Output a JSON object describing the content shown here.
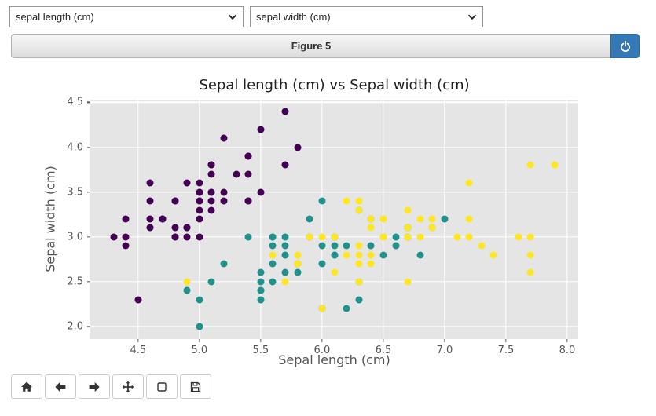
{
  "controls": {
    "x_select": {
      "value": "sepal length (cm)"
    },
    "y_select": {
      "value": "sepal width (cm)"
    }
  },
  "figure_header": {
    "label": "Figure 5",
    "power_icon": "power-icon"
  },
  "colors": {
    "header_blue": "#3478b5",
    "plot_background": "#e5e5e5",
    "grid": "#ffffff",
    "series_purple": "#440154",
    "series_teal": "#21918c",
    "series_yellow": "#fde725"
  },
  "toolbar": {
    "icons": [
      "home-icon",
      "arrow-left-icon",
      "arrow-right-icon",
      "move-icon",
      "square-icon",
      "save-icon"
    ]
  },
  "chart_data": {
    "type": "scatter",
    "title": "Sepal length (cm) vs Sepal width (cm)",
    "xlabel": "Sepal length (cm)",
    "ylabel": "Sepal width (cm)",
    "xlim": [
      4.11,
      8.09
    ],
    "ylim": [
      1.86,
      4.53
    ],
    "xticks": [
      4.5,
      5.0,
      5.5,
      6.0,
      6.5,
      7.0,
      7.5,
      8.0
    ],
    "yticks": [
      2.0,
      2.5,
      3.0,
      3.5,
      4.0,
      4.5
    ],
    "grid": true,
    "legend": "none",
    "series": [
      {
        "name": "purple-group",
        "color": "#440154",
        "points": [
          [
            5.1,
            3.5
          ],
          [
            4.9,
            3.0
          ],
          [
            4.7,
            3.2
          ],
          [
            4.6,
            3.1
          ],
          [
            5.0,
            3.6
          ],
          [
            5.4,
            3.9
          ],
          [
            4.6,
            3.4
          ],
          [
            5.0,
            3.4
          ],
          [
            4.4,
            2.9
          ],
          [
            4.9,
            3.1
          ],
          [
            5.4,
            3.7
          ],
          [
            4.8,
            3.4
          ],
          [
            4.8,
            3.0
          ],
          [
            4.3,
            3.0
          ],
          [
            5.8,
            4.0
          ],
          [
            5.7,
            4.4
          ],
          [
            5.4,
            3.9
          ],
          [
            5.1,
            3.5
          ],
          [
            5.7,
            3.8
          ],
          [
            5.1,
            3.8
          ],
          [
            5.4,
            3.4
          ],
          [
            5.1,
            3.7
          ],
          [
            4.6,
            3.6
          ],
          [
            5.1,
            3.3
          ],
          [
            4.8,
            3.4
          ],
          [
            5.0,
            3.0
          ],
          [
            5.0,
            3.4
          ],
          [
            5.2,
            3.5
          ],
          [
            5.2,
            3.4
          ],
          [
            4.7,
            3.2
          ],
          [
            4.8,
            3.1
          ],
          [
            5.4,
            3.4
          ],
          [
            5.2,
            4.1
          ],
          [
            5.5,
            4.2
          ],
          [
            4.9,
            3.1
          ],
          [
            5.0,
            3.2
          ],
          [
            5.5,
            3.5
          ],
          [
            4.9,
            3.6
          ],
          [
            4.4,
            3.0
          ],
          [
            5.1,
            3.4
          ],
          [
            5.0,
            3.5
          ],
          [
            4.5,
            2.3
          ],
          [
            4.4,
            3.2
          ],
          [
            5.0,
            3.5
          ],
          [
            5.1,
            3.8
          ],
          [
            4.8,
            3.0
          ],
          [
            5.1,
            3.8
          ],
          [
            4.6,
            3.2
          ],
          [
            5.3,
            3.7
          ],
          [
            5.0,
            3.3
          ]
        ]
      },
      {
        "name": "teal-group",
        "color": "#21918c",
        "points": [
          [
            7.0,
            3.2
          ],
          [
            6.4,
            3.2
          ],
          [
            6.9,
            3.1
          ],
          [
            5.5,
            2.3
          ],
          [
            6.5,
            2.8
          ],
          [
            5.7,
            2.8
          ],
          [
            6.3,
            3.3
          ],
          [
            4.9,
            2.4
          ],
          [
            6.6,
            2.9
          ],
          [
            5.2,
            2.7
          ],
          [
            5.0,
            2.0
          ],
          [
            5.9,
            3.0
          ],
          [
            6.0,
            2.2
          ],
          [
            6.1,
            2.9
          ],
          [
            5.6,
            2.9
          ],
          [
            6.7,
            3.1
          ],
          [
            5.6,
            3.0
          ],
          [
            5.8,
            2.7
          ],
          [
            6.2,
            2.2
          ],
          [
            5.6,
            2.5
          ],
          [
            5.9,
            3.2
          ],
          [
            6.1,
            2.8
          ],
          [
            6.3,
            2.5
          ],
          [
            6.1,
            2.8
          ],
          [
            6.4,
            2.9
          ],
          [
            6.6,
            3.0
          ],
          [
            6.8,
            2.8
          ],
          [
            6.7,
            3.0
          ],
          [
            6.0,
            2.9
          ],
          [
            5.7,
            2.6
          ],
          [
            5.5,
            2.4
          ],
          [
            5.5,
            2.4
          ],
          [
            5.8,
            2.7
          ],
          [
            6.0,
            2.7
          ],
          [
            5.4,
            3.0
          ],
          [
            6.0,
            3.4
          ],
          [
            6.7,
            3.1
          ],
          [
            6.3,
            2.3
          ],
          [
            5.6,
            3.0
          ],
          [
            5.5,
            2.5
          ],
          [
            5.5,
            2.6
          ],
          [
            6.1,
            3.0
          ],
          [
            5.8,
            2.6
          ],
          [
            5.0,
            2.3
          ],
          [
            5.6,
            2.7
          ],
          [
            5.7,
            3.0
          ],
          [
            5.7,
            2.9
          ],
          [
            6.2,
            2.9
          ],
          [
            5.1,
            2.5
          ],
          [
            5.7,
            2.8
          ]
        ]
      },
      {
        "name": "yellow-group",
        "color": "#fde725",
        "points": [
          [
            6.3,
            3.3
          ],
          [
            5.8,
            2.7
          ],
          [
            7.1,
            3.0
          ],
          [
            6.3,
            2.9
          ],
          [
            6.5,
            3.0
          ],
          [
            7.6,
            3.0
          ],
          [
            4.9,
            2.5
          ],
          [
            7.3,
            2.9
          ],
          [
            6.7,
            2.5
          ],
          [
            7.2,
            3.6
          ],
          [
            6.5,
            3.2
          ],
          [
            6.4,
            2.7
          ],
          [
            6.8,
            3.0
          ],
          [
            5.7,
            2.5
          ],
          [
            5.8,
            2.8
          ],
          [
            6.4,
            3.2
          ],
          [
            6.5,
            3.0
          ],
          [
            7.7,
            3.8
          ],
          [
            7.7,
            2.6
          ],
          [
            6.0,
            2.2
          ],
          [
            6.9,
            3.2
          ],
          [
            5.6,
            2.8
          ],
          [
            7.7,
            2.8
          ],
          [
            6.3,
            2.7
          ],
          [
            6.7,
            3.3
          ],
          [
            7.2,
            3.2
          ],
          [
            6.2,
            2.8
          ],
          [
            6.1,
            3.0
          ],
          [
            6.4,
            2.8
          ],
          [
            7.2,
            3.0
          ],
          [
            7.4,
            2.8
          ],
          [
            7.9,
            3.8
          ],
          [
            6.4,
            2.8
          ],
          [
            6.3,
            2.8
          ],
          [
            6.1,
            2.6
          ],
          [
            7.7,
            3.0
          ],
          [
            6.3,
            3.4
          ],
          [
            6.4,
            3.1
          ],
          [
            6.0,
            3.0
          ],
          [
            6.9,
            3.1
          ],
          [
            6.7,
            3.1
          ],
          [
            6.9,
            3.1
          ],
          [
            5.8,
            2.7
          ],
          [
            6.8,
            3.2
          ],
          [
            6.7,
            3.3
          ],
          [
            6.7,
            3.0
          ],
          [
            6.3,
            2.5
          ],
          [
            6.5,
            3.0
          ],
          [
            6.2,
            3.4
          ],
          [
            5.9,
            3.0
          ]
        ]
      }
    ]
  }
}
